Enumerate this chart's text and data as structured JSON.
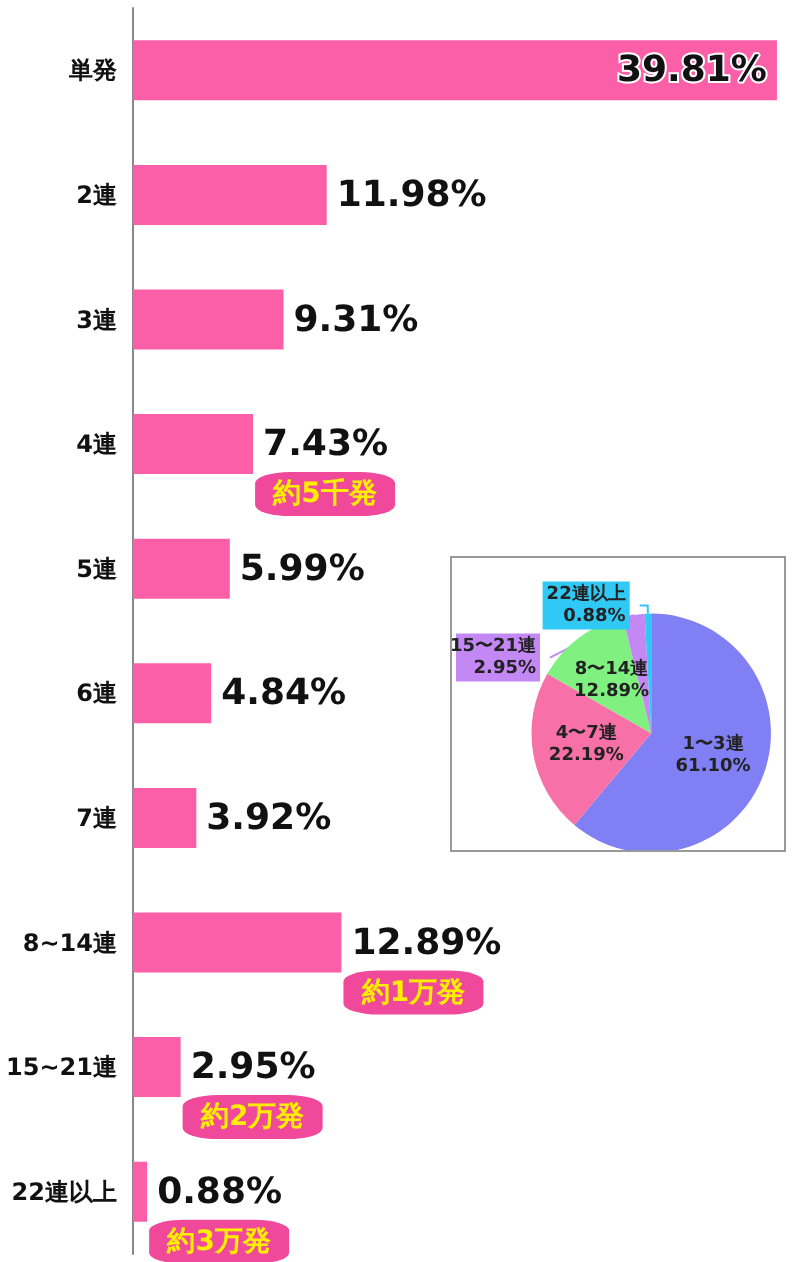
{
  "chart_data": [
    {
      "type": "bar",
      "orientation": "horizontal",
      "categories": [
        "単発",
        "2連",
        "3連",
        "4連",
        "5連",
        "6連",
        "7連",
        "8~14連",
        "15~21連",
        "22連以上"
      ],
      "values": [
        39.81,
        11.98,
        9.31,
        7.43,
        5.99,
        4.84,
        3.92,
        12.89,
        2.95,
        0.88
      ],
      "value_labels": [
        "39.81%",
        "11.98%",
        "9.31%",
        "7.43%",
        "5.99%",
        "4.84%",
        "3.92%",
        "12.89%",
        "2.95%",
        "0.88%"
      ],
      "color": "#fa5fa8",
      "annotations": [
        {
          "text": "約5千発",
          "x": 7.43,
          "y": "4連"
        },
        {
          "text": "約1万発",
          "x": 12.89,
          "y": "8~14連"
        },
        {
          "text": "約2万発",
          "x": 2.95,
          "y": "15~21連"
        },
        {
          "text": "約3万発",
          "x": 0.88,
          "y": "22連以上"
        }
      ]
    },
    {
      "type": "pie",
      "categories": [
        "1〜3連",
        "4〜7連",
        "8〜14連",
        "15〜21連",
        "22連以上"
      ],
      "values": [
        61.1,
        22.19,
        12.89,
        2.95,
        0.88
      ],
      "value_labels": [
        "61.10%",
        "22.19%",
        "12.89%",
        "2.95%",
        "0.88%"
      ],
      "colors": [
        "#8080f4",
        "#f870a8",
        "#80f080",
        "#c488f4",
        "#30c8f4"
      ]
    }
  ]
}
